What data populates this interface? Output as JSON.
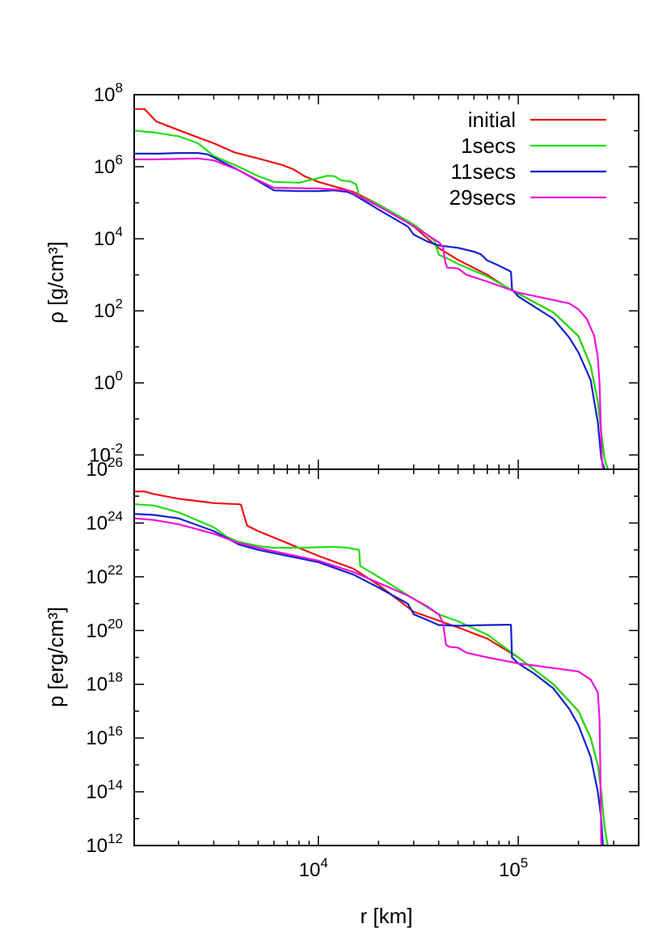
{
  "chart_data": [
    {
      "type": "line",
      "ylabel": "ρ [g/cm³]",
      "xlabel": "",
      "x_scale": "log",
      "y_scale": "log",
      "xlim": [
        1200,
        400000
      ],
      "ylim": [
        0.004,
        100000000
      ],
      "y_ticks": [
        {
          "exp": "8",
          "value": 100000000
        },
        {
          "exp": "6",
          "value": 1000000
        },
        {
          "exp": "4",
          "value": 10000
        },
        {
          "exp": "2",
          "value": 100
        },
        {
          "exp": "0",
          "value": 1
        },
        {
          "exp": "-2",
          "value": 0.01
        }
      ],
      "legend": {
        "position": "top-right",
        "entries": [
          {
            "label": "initial",
            "color": "#ee1111"
          },
          {
            "label": "1secs",
            "color": "#22dd11"
          },
          {
            "label": "11secs",
            "color": "#1122cc"
          },
          {
            "label": "29secs",
            "color": "#ee11dd"
          }
        ]
      },
      "series": [
        {
          "name": "initial",
          "color": "#ee1111",
          "points": [
            [
              1200,
              40000000
            ],
            [
              1350,
              40000000
            ],
            [
              1550,
              18000000
            ],
            [
              2200,
              8500000
            ],
            [
              3000,
              4500000
            ],
            [
              3800,
              2500000
            ],
            [
              5000,
              1700000
            ],
            [
              6500,
              1150000
            ],
            [
              7500,
              850000
            ],
            [
              8500,
              550000
            ],
            [
              10000,
              380000
            ],
            [
              15000,
              200000
            ],
            [
              20000,
              90000
            ],
            [
              30000,
              22000
            ],
            [
              40000,
              5500
            ],
            [
              50000,
              2600
            ],
            [
              70000,
              1000
            ],
            [
              90000,
              400
            ],
            [
              100000,
              300
            ],
            [
              150000,
              90
            ],
            [
              200000,
              20
            ],
            [
              230000,
              3
            ],
            [
              250000,
              0.3
            ],
            [
              260000,
              0.04
            ],
            [
              270000,
              0.008
            ],
            [
              280000,
              0.004
            ]
          ]
        },
        {
          "name": "1secs",
          "color": "#22dd11",
          "points": [
            [
              1200,
              10000000
            ],
            [
              1500,
              9000000
            ],
            [
              2000,
              7000000
            ],
            [
              2500,
              4500000
            ],
            [
              3000,
              2000000
            ],
            [
              4000,
              1000000
            ],
            [
              5000,
              550000
            ],
            [
              6000,
              380000
            ],
            [
              8000,
              360000
            ],
            [
              10000,
              480000
            ],
            [
              11000,
              560000
            ],
            [
              12000,
              550000
            ],
            [
              13000,
              420000
            ],
            [
              14500,
              390000
            ],
            [
              15500,
              320000
            ],
            [
              16000,
              150000
            ],
            [
              20000,
              90000
            ],
            [
              30000,
              25000
            ],
            [
              38000,
              9000
            ],
            [
              40000,
              3600
            ],
            [
              45000,
              2700
            ],
            [
              50000,
              2000
            ],
            [
              70000,
              900
            ],
            [
              100000,
              300
            ],
            [
              150000,
              90
            ],
            [
              200000,
              20
            ],
            [
              230000,
              3
            ],
            [
              250000,
              0.3
            ],
            [
              260000,
              0.04
            ],
            [
              270000,
              0.008
            ],
            [
              280000,
              0.004
            ]
          ]
        },
        {
          "name": "11secs",
          "color": "#1122cc",
          "points": [
            [
              1200,
              2300000
            ],
            [
              1600,
              2300000
            ],
            [
              2000,
              2400000
            ],
            [
              2500,
              2400000
            ],
            [
              2800,
              2200000
            ],
            [
              3200,
              1500000
            ],
            [
              4000,
              800000
            ],
            [
              5000,
              400000
            ],
            [
              6000,
              220000
            ],
            [
              8000,
              210000
            ],
            [
              10000,
              210000
            ],
            [
              12000,
              220000
            ],
            [
              14000,
              200000
            ],
            [
              15000,
              170000
            ],
            [
              20000,
              65000
            ],
            [
              28000,
              22000
            ],
            [
              30000,
              13000
            ],
            [
              35000,
              8500
            ],
            [
              40000,
              6500
            ],
            [
              50000,
              5600
            ],
            [
              60000,
              4400
            ],
            [
              65000,
              3700
            ],
            [
              70000,
              2500
            ],
            [
              80000,
              1800
            ],
            [
              90000,
              1300
            ],
            [
              92000,
              1200
            ],
            [
              93000,
              400
            ],
            [
              100000,
              250
            ],
            [
              150000,
              60
            ],
            [
              180000,
              18
            ],
            [
              200000,
              7
            ],
            [
              230000,
              1.2
            ],
            [
              250000,
              0.08
            ],
            [
              260000,
              0.008
            ],
            [
              270000,
              0.004
            ]
          ]
        },
        {
          "name": "29secs",
          "color": "#ee11dd",
          "points": [
            [
              1200,
              1600000
            ],
            [
              1500,
              1600000
            ],
            [
              2000,
              1650000
            ],
            [
              2500,
              1700000
            ],
            [
              3000,
              1500000
            ],
            [
              4000,
              800000
            ],
            [
              5000,
              420000
            ],
            [
              6000,
              260000
            ],
            [
              10000,
              250000
            ],
            [
              14000,
              220000
            ],
            [
              15000,
              180000
            ],
            [
              20000,
              80000
            ],
            [
              28000,
              28000
            ],
            [
              35000,
              13000
            ],
            [
              40000,
              8000
            ],
            [
              42000,
              6000
            ],
            [
              43000,
              2500
            ],
            [
              44000,
              1600
            ],
            [
              50000,
              1500
            ],
            [
              55000,
              1000
            ],
            [
              70000,
              650
            ],
            [
              100000,
              320
            ],
            [
              150000,
              200
            ],
            [
              180000,
              160
            ],
            [
              200000,
              110
            ],
            [
              220000,
              60
            ],
            [
              240000,
              20
            ],
            [
              250000,
              5
            ],
            [
              255000,
              1
            ],
            [
              258000,
              0.1
            ],
            [
              262000,
              0.008
            ],
            [
              265000,
              0.004
            ]
          ]
        }
      ]
    },
    {
      "type": "line",
      "ylabel": "p [erg/cm³]",
      "xlabel": "r [km]",
      "x_scale": "log",
      "y_scale": "log",
      "xlim": [
        1200,
        400000
      ],
      "ylim": [
        1000000000000,
        100000000000000000000000000
      ],
      "x_ticks": [
        {
          "exp": "4",
          "value": 10000
        },
        {
          "exp": "5",
          "value": 100000
        }
      ],
      "y_ticks": [
        {
          "exp": "26",
          "value": 1e+26
        },
        {
          "exp": "24",
          "value": 1e+24
        },
        {
          "exp": "22",
          "value": 1e+22
        },
        {
          "exp": "20",
          "value": 1e+20
        },
        {
          "exp": "18",
          "value": 1e+18
        },
        {
          "exp": "16",
          "value": 1e+16
        },
        {
          "exp": "14",
          "value": 100000000000000.0
        },
        {
          "exp": "12",
          "value": 1000000000000.0
        }
      ],
      "series": [
        {
          "name": "initial",
          "color": "#ee1111",
          "points": [
            [
              1200,
              1.5e+25
            ],
            [
              1350,
              1.5e+25
            ],
            [
              1500,
              1.2e+25
            ],
            [
              2000,
              8e+24
            ],
            [
              3000,
              5.5e+24
            ],
            [
              4000,
              5e+24
            ],
            [
              4100,
              4.8e+24
            ],
            [
              4400,
              8e+23
            ],
            [
              5000,
              5e+23
            ],
            [
              7000,
              1.8e+23
            ],
            [
              10000,
              6e+22
            ],
            [
              15000,
              2e+22
            ],
            [
              20000,
              5e+21
            ],
            [
              30000,
              5e+20
            ],
            [
              50000,
              1.3e+20
            ],
            [
              70000,
              5e+19
            ],
            [
              100000,
              1e+19
            ],
            [
              150000,
              1e+18
            ],
            [
              200000,
              1e+17
            ],
            [
              230000,
              1e+16
            ],
            [
              250000,
              1000000000000000.0
            ],
            [
              260000,
              100000000000000.0
            ],
            [
              270000,
              5000000000000.0
            ],
            [
              280000,
              1000000000000.0
            ]
          ]
        },
        {
          "name": "1secs",
          "color": "#22dd11",
          "points": [
            [
              1200,
              5e+24
            ],
            [
              1500,
              4.5e+24
            ],
            [
              2000,
              2.5e+24
            ],
            [
              3000,
              7e+23
            ],
            [
              3500,
              3e+23
            ],
            [
              4000,
              2e+23
            ],
            [
              5000,
              1.4e+23
            ],
            [
              6000,
              1.2e+23
            ],
            [
              8000,
              1.2e+23
            ],
            [
              10000,
              1.25e+23
            ],
            [
              12000,
              1.3e+23
            ],
            [
              14000,
              1.2e+23
            ],
            [
              15000,
              1.1e+23
            ],
            [
              16000,
              1e+23
            ],
            [
              16200,
              2.5e+22
            ],
            [
              20000,
              1e+22
            ],
            [
              30000,
              1.5e+21
            ],
            [
              40000,
              4e+20
            ],
            [
              50000,
              2.2e+20
            ],
            [
              70000,
              7e+19
            ],
            [
              100000,
              1e+19
            ],
            [
              150000,
              1e+18
            ],
            [
              200000,
              1e+17
            ],
            [
              230000,
              1e+16
            ],
            [
              250000,
              1000000000000000.0
            ],
            [
              260000,
              100000000000000.0
            ],
            [
              270000,
              5000000000000.0
            ],
            [
              280000,
              1000000000000.0
            ]
          ]
        },
        {
          "name": "11secs",
          "color": "#1122cc",
          "points": [
            [
              1200,
              2.2e+24
            ],
            [
              1500,
              2e+24
            ],
            [
              2000,
              1.5e+24
            ],
            [
              3000,
              5e+23
            ],
            [
              4000,
              1.6e+23
            ],
            [
              5000,
              1e+23
            ],
            [
              7000,
              6e+22
            ],
            [
              10000,
              3.5e+22
            ],
            [
              15000,
              1.2e+22
            ],
            [
              20000,
              4e+21
            ],
            [
              28000,
              1e+21
            ],
            [
              30000,
              4e+20
            ],
            [
              35000,
              2.5e+20
            ],
            [
              40000,
              1.6e+20
            ],
            [
              50000,
              1.5e+20
            ],
            [
              70000,
              1.6e+20
            ],
            [
              90000,
              1.65e+20
            ],
            [
              92000,
              1.6e+20
            ],
            [
              93000,
              1e+19
            ],
            [
              100000,
              6e+18
            ],
            [
              120000,
              2.5e+18
            ],
            [
              150000,
              7e+17
            ],
            [
              180000,
              1.2e+17
            ],
            [
              200000,
              3e+16
            ],
            [
              230000,
              2000000000000000.0
            ],
            [
              250000,
              100000000000000.0
            ],
            [
              260000,
              10000000000000.0
            ],
            [
              265000,
              1000000000000.0
            ]
          ]
        },
        {
          "name": "29secs",
          "color": "#ee11dd",
          "points": [
            [
              1200,
              1.5e+24
            ],
            [
              1500,
              1.3e+24
            ],
            [
              2000,
              9e+23
            ],
            [
              3000,
              4e+23
            ],
            [
              4000,
              1.8e+23
            ],
            [
              5000,
              1.2e+23
            ],
            [
              7000,
              7e+22
            ],
            [
              10000,
              4e+22
            ],
            [
              15000,
              1.5e+22
            ],
            [
              20000,
              6e+21
            ],
            [
              28000,
              2e+21
            ],
            [
              35000,
              8e+20
            ],
            [
              40000,
              4e+20
            ],
            [
              42000,
              2e+20
            ],
            [
              43500,
              3e+19
            ],
            [
              45000,
              2.5e+19
            ],
            [
              50000,
              2.3e+19
            ],
            [
              55000,
              1.5e+19
            ],
            [
              70000,
              1e+19
            ],
            [
              100000,
              6e+18
            ],
            [
              150000,
              4e+18
            ],
            [
              200000,
              3e+18
            ],
            [
              230000,
              1.5e+18
            ],
            [
              250000,
              5e+17
            ],
            [
              255000,
              5e+16
            ],
            [
              257000,
              1000000000000000.0
            ],
            [
              259000,
              10000000000000.0
            ],
            [
              260000,
              1000000000000.0
            ]
          ]
        }
      ]
    }
  ]
}
